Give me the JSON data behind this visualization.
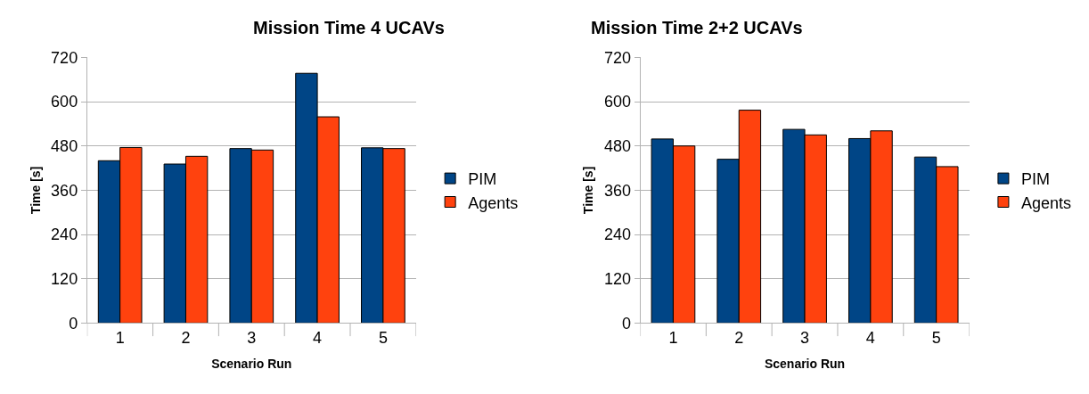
{
  "chart_data": [
    {
      "type": "bar",
      "title": "Mission Time 4 UCAVs",
      "xlabel": "Scenario Run",
      "ylabel": "Time [s]",
      "categories": [
        "1",
        "2",
        "3",
        "4",
        "5"
      ],
      "series": [
        {
          "name": "PIM",
          "color": "#004586",
          "values": [
            440,
            431,
            473,
            677,
            475
          ]
        },
        {
          "name": "Agents",
          "color": "#ff420e",
          "values": [
            476,
            452,
            469,
            559,
            473
          ]
        }
      ],
      "ylim": [
        0,
        720
      ],
      "yticks": [
        0,
        120,
        240,
        360,
        480,
        600,
        720
      ],
      "grid": "y",
      "legend": "right"
    },
    {
      "type": "bar",
      "title": "Mission Time 2+2 UCAVs",
      "xlabel": "Scenario Run",
      "ylabel": "Time [s]",
      "categories": [
        "1",
        "2",
        "3",
        "4",
        "5"
      ],
      "series": [
        {
          "name": "PIM",
          "color": "#004586",
          "values": [
            499,
            444,
            525,
            500,
            450
          ]
        },
        {
          "name": "Agents",
          "color": "#ff420e",
          "values": [
            480,
            577,
            510,
            521,
            424
          ]
        }
      ],
      "ylim": [
        0,
        720
      ],
      "yticks": [
        0,
        120,
        240,
        360,
        480,
        600,
        720
      ],
      "grid": "y",
      "legend": "right"
    }
  ]
}
